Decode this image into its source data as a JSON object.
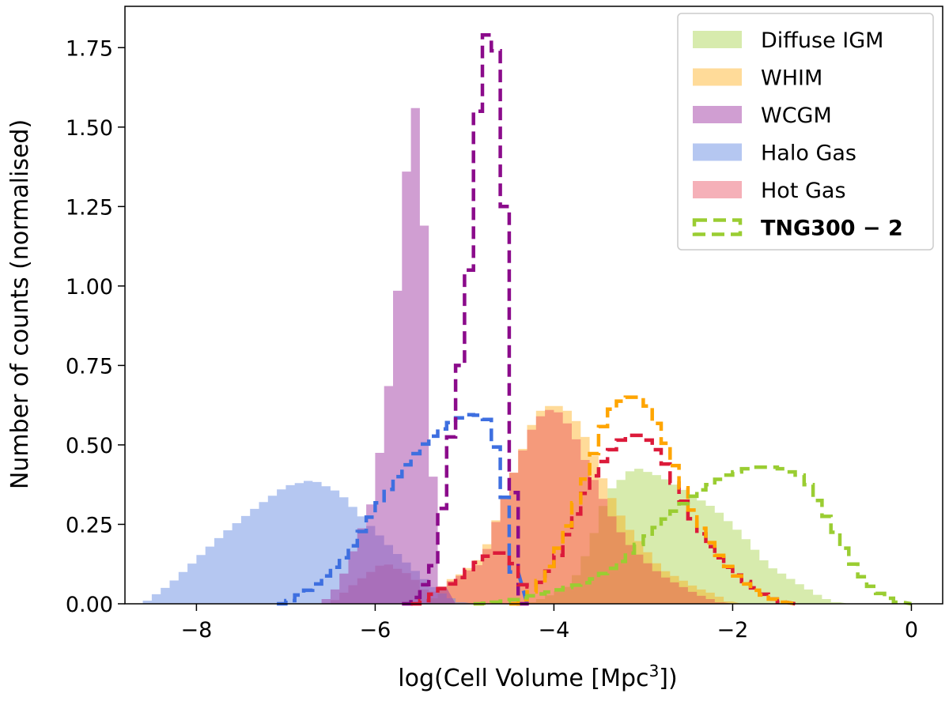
{
  "chart_data": {
    "type": "histogram",
    "xlabel": "log(Cell Volume [Mpc",
    "xlabel_sup": "3",
    "xlabel_tail": "])",
    "ylabel": "Number of counts (normalised)",
    "xlim": [
      -8.8,
      0.35
    ],
    "ylim": [
      0,
      1.88
    ],
    "xticks": [
      -8,
      -6,
      -4,
      -2,
      0
    ],
    "xtick_labels": [
      "−8",
      "−6",
      "−4",
      "−2",
      "0"
    ],
    "yticks": [
      0,
      0.25,
      0.5,
      0.75,
      1.0,
      1.25,
      1.5,
      1.75
    ],
    "ytick_labels": [
      "0.00",
      "0.25",
      "0.50",
      "0.75",
      "1.00",
      "1.25",
      "1.50",
      "1.75"
    ],
    "legend_position": "top-right",
    "bin_edges": {
      "start": -8.8,
      "step": 0.1
    },
    "filled_series": [
      {
        "name": "Diffuse IGM",
        "color": "#9acd32",
        "opacity": 0.4,
        "points": [
          [
            -4.3,
            0
          ],
          [
            -4.1,
            0.02
          ],
          [
            -3.8,
            0.06
          ],
          [
            -3.6,
            0.18
          ],
          [
            -3.4,
            0.35
          ],
          [
            -3.1,
            0.43
          ],
          [
            -2.8,
            0.4
          ],
          [
            -2.5,
            0.35
          ],
          [
            -2.2,
            0.3
          ],
          [
            -1.9,
            0.22
          ],
          [
            -1.6,
            0.12
          ],
          [
            -1.3,
            0.07
          ],
          [
            -1.0,
            0.02
          ],
          [
            -0.8,
            0.0
          ]
        ]
      },
      {
        "name": "WHIM",
        "color": "#ffa500",
        "opacity": 0.4,
        "points": [
          [
            -5.4,
            0
          ],
          [
            -5.2,
            0.07
          ],
          [
            -5.0,
            0.1
          ],
          [
            -4.8,
            0.15
          ],
          [
            -4.6,
            0.3
          ],
          [
            -4.4,
            0.45
          ],
          [
            -4.2,
            0.6
          ],
          [
            -4.0,
            0.63
          ],
          [
            -3.8,
            0.6
          ],
          [
            -3.6,
            0.5
          ],
          [
            -3.4,
            0.36
          ],
          [
            -3.2,
            0.25
          ],
          [
            -3.0,
            0.18
          ],
          [
            -2.8,
            0.11
          ],
          [
            -2.6,
            0.08
          ],
          [
            -2.4,
            0.05
          ],
          [
            -2.2,
            0.03
          ],
          [
            -2.0,
            0.0
          ]
        ]
      },
      {
        "name": "Hot Gas",
        "color": "#e6394d",
        "opacity": 0.4,
        "points": [
          [
            -6.5,
            0
          ],
          [
            -6.2,
            0.07
          ],
          [
            -5.9,
            0.13
          ],
          [
            -5.6,
            0.09
          ],
          [
            -5.4,
            0.03
          ],
          [
            -5.1,
            0.08
          ],
          [
            -4.8,
            0.13
          ],
          [
            -4.6,
            0.3
          ],
          [
            -4.4,
            0.45
          ],
          [
            -4.2,
            0.58
          ],
          [
            -4.0,
            0.62
          ],
          [
            -3.8,
            0.55
          ],
          [
            -3.6,
            0.42
          ],
          [
            -3.4,
            0.3
          ],
          [
            -3.2,
            0.2
          ],
          [
            -3.0,
            0.14
          ],
          [
            -2.8,
            0.09
          ],
          [
            -2.6,
            0.06
          ],
          [
            -2.4,
            0.03
          ],
          [
            -2.1,
            0.0
          ]
        ]
      },
      {
        "name": "Halo Gas",
        "color": "#6b8fe3",
        "opacity": 0.5,
        "points": [
          [
            -8.6,
            0
          ],
          [
            -8.3,
            0.06
          ],
          [
            -8.0,
            0.14
          ],
          [
            -7.7,
            0.22
          ],
          [
            -7.3,
            0.31
          ],
          [
            -7.0,
            0.37
          ],
          [
            -6.7,
            0.39
          ],
          [
            -6.4,
            0.35
          ],
          [
            -6.1,
            0.26
          ],
          [
            -5.8,
            0.17
          ],
          [
            -5.5,
            0.09
          ],
          [
            -5.3,
            0.04
          ],
          [
            -5.1,
            0.01
          ],
          [
            -5.0,
            0.0
          ]
        ]
      },
      {
        "name": "WCGM",
        "color": "#a23ea5",
        "opacity": 0.5,
        "points": [
          [
            -6.6,
            0
          ],
          [
            -6.4,
            0.06
          ],
          [
            -6.2,
            0.2
          ],
          [
            -6.0,
            0.35
          ],
          [
            -5.9,
            0.6
          ],
          [
            -5.8,
            0.77
          ],
          [
            -5.7,
            1.2
          ],
          [
            -5.6,
            1.52
          ],
          [
            -5.55,
            1.56
          ],
          [
            -5.5,
            1.48
          ],
          [
            -5.4,
            0.9
          ],
          [
            -5.35,
            0.4
          ],
          [
            -5.3,
            0.1
          ],
          [
            -5.2,
            0.0
          ]
        ]
      }
    ],
    "step_series": [
      {
        "name": "Halo Gas (TNG300-2)",
        "color": "#3e6fe0",
        "points": [
          [
            -7.0,
            0.0
          ],
          [
            -6.9,
            0.02
          ],
          [
            -6.7,
            0.05
          ],
          [
            -6.5,
            0.1
          ],
          [
            -6.3,
            0.16
          ],
          [
            -6.1,
            0.25
          ],
          [
            -5.9,
            0.34
          ],
          [
            -5.7,
            0.42
          ],
          [
            -5.5,
            0.49
          ],
          [
            -5.3,
            0.54
          ],
          [
            -5.1,
            0.58
          ],
          [
            -4.9,
            0.6
          ],
          [
            -4.75,
            0.58
          ],
          [
            -4.6,
            0.45
          ],
          [
            -4.5,
            0.22
          ],
          [
            -4.45,
            0.1
          ],
          [
            -4.4,
            0.0
          ]
        ]
      },
      {
        "name": "WCGM (TNG300-2)",
        "color": "#8b0b8b",
        "points": [
          [
            -5.6,
            0.0
          ],
          [
            -5.45,
            0.06
          ],
          [
            -5.3,
            0.15
          ],
          [
            -5.2,
            0.45
          ],
          [
            -5.1,
            0.6
          ],
          [
            -5.0,
            0.9
          ],
          [
            -4.95,
            1.05
          ],
          [
            -4.9,
            1.25
          ],
          [
            -4.85,
            1.55
          ],
          [
            -4.8,
            1.68
          ],
          [
            -4.75,
            1.79
          ],
          [
            -4.7,
            1.81
          ],
          [
            -4.65,
            1.74
          ],
          [
            -4.6,
            1.52
          ],
          [
            -4.55,
            1.25
          ],
          [
            -4.5,
            0.65
          ],
          [
            -4.45,
            0.35
          ],
          [
            -4.4,
            0.05
          ],
          [
            -4.35,
            0.0
          ]
        ]
      },
      {
        "name": "Hot Gas (TNG300-2)",
        "color": "#dc1a3a",
        "points": [
          [
            -5.5,
            0.0
          ],
          [
            -5.3,
            0.04
          ],
          [
            -5.1,
            0.07
          ],
          [
            -4.9,
            0.12
          ],
          [
            -4.7,
            0.16
          ],
          [
            -4.5,
            0.16
          ],
          [
            -4.35,
            0.06
          ],
          [
            -4.2,
            0.05
          ],
          [
            -4.0,
            0.12
          ],
          [
            -3.8,
            0.25
          ],
          [
            -3.6,
            0.38
          ],
          [
            -3.4,
            0.47
          ],
          [
            -3.2,
            0.53
          ],
          [
            -3.0,
            0.53
          ],
          [
            -2.8,
            0.47
          ],
          [
            -2.6,
            0.35
          ],
          [
            -2.4,
            0.24
          ],
          [
            -2.2,
            0.16
          ],
          [
            -2.0,
            0.1
          ],
          [
            -1.8,
            0.06
          ],
          [
            -1.6,
            0.02
          ],
          [
            -1.4,
            0.0
          ]
        ]
      },
      {
        "name": "WHIM (TNG300-2)",
        "color": "#ffa500",
        "points": [
          [
            -4.4,
            0.0
          ],
          [
            -4.2,
            0.05
          ],
          [
            -4.0,
            0.14
          ],
          [
            -3.8,
            0.28
          ],
          [
            -3.6,
            0.43
          ],
          [
            -3.4,
            0.6
          ],
          [
            -3.2,
            0.65
          ],
          [
            -3.0,
            0.65
          ],
          [
            -2.8,
            0.54
          ],
          [
            -2.6,
            0.4
          ],
          [
            -2.4,
            0.26
          ],
          [
            -2.2,
            0.17
          ],
          [
            -2.0,
            0.1
          ],
          [
            -1.8,
            0.05
          ],
          [
            -1.6,
            0.02
          ],
          [
            -1.4,
            0.0
          ]
        ]
      },
      {
        "name": "Diffuse IGM (TNG300-2)",
        "color": "#9acd32",
        "points": [
          [
            -4.8,
            0.0
          ],
          [
            -4.5,
            0.01
          ],
          [
            -4.0,
            0.04
          ],
          [
            -3.6,
            0.07
          ],
          [
            -3.3,
            0.12
          ],
          [
            -3.0,
            0.2
          ],
          [
            -2.7,
            0.28
          ],
          [
            -2.4,
            0.35
          ],
          [
            -2.1,
            0.4
          ],
          [
            -1.8,
            0.43
          ],
          [
            -1.5,
            0.43
          ],
          [
            -1.2,
            0.4
          ],
          [
            -1.0,
            0.3
          ],
          [
            -0.8,
            0.2
          ],
          [
            -0.6,
            0.1
          ],
          [
            -0.4,
            0.04
          ],
          [
            -0.2,
            0.01
          ],
          [
            -0.1,
            0.0
          ]
        ]
      }
    ],
    "legend": [
      {
        "label": "Diffuse IGM",
        "style": "fill",
        "color": "#9acd32",
        "opacity": 0.4
      },
      {
        "label": "WHIM",
        "style": "fill",
        "color": "#ffa500",
        "opacity": 0.4
      },
      {
        "label": "WCGM",
        "style": "fill",
        "color": "#a23ea5",
        "opacity": 0.5
      },
      {
        "label": "Halo Gas",
        "style": "fill",
        "color": "#6b8fe3",
        "opacity": 0.5
      },
      {
        "label": "Hot Gas",
        "style": "fill",
        "color": "#e6394d",
        "opacity": 0.4
      },
      {
        "label": "TNG300 − 2",
        "style": "dashed",
        "color": "#9acd32",
        "bold": true
      }
    ]
  }
}
